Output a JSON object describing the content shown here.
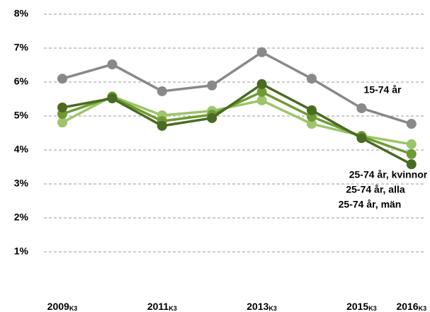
{
  "chart_data": {
    "type": "line",
    "categories": [
      "2009",
      null,
      "2011",
      null,
      "2013",
      null,
      "2015",
      "2016"
    ],
    "category_suffix": "K3",
    "series": [
      {
        "name": "15-74 år",
        "color": "#898989",
        "values": [
          6.1,
          6.52,
          5.73,
          5.9,
          6.88,
          6.1,
          5.23,
          4.77
        ]
      },
      {
        "name": "25-74 år, kvinnor",
        "color": "#9dc569",
        "values": [
          4.81,
          5.58,
          5.02,
          5.15,
          5.46,
          4.77,
          4.42,
          4.17
        ]
      },
      {
        "name": "25-74 år, alla",
        "color": "#6f9a33",
        "values": [
          5.06,
          5.56,
          4.85,
          5.04,
          5.71,
          4.98,
          4.4,
          3.88
        ]
      },
      {
        "name": "25-74 år, män",
        "color": "#4a6b22",
        "values": [
          5.25,
          5.52,
          4.71,
          4.94,
          5.94,
          5.17,
          4.35,
          3.58
        ]
      }
    ],
    "ylim": [
      0,
      8
    ],
    "yticks": [
      {
        "value": 1,
        "label": "1%"
      },
      {
        "value": 2,
        "label": "2%"
      },
      {
        "value": 3,
        "label": "3%"
      },
      {
        "value": 4,
        "label": "4%"
      },
      {
        "value": 5,
        "label": "5%"
      },
      {
        "value": 6,
        "label": "6%"
      },
      {
        "value": 7,
        "label": "7%"
      },
      {
        "value": 8,
        "label": "8%"
      }
    ],
    "grid": true
  }
}
